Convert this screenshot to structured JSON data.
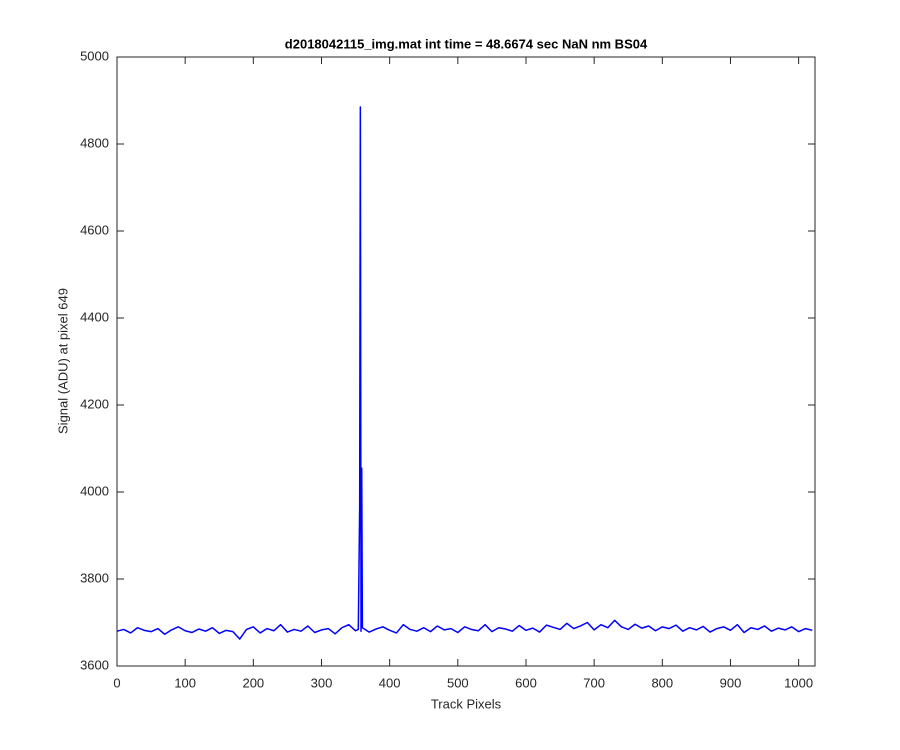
{
  "chart_data": {
    "type": "line",
    "title": "d2018042115_img.mat int time = 48.6674 sec  NaN nm BS04",
    "x_label": "Track Pixels",
    "y_label": "Signal (ADU) at pixel 649",
    "color": "#0000ff",
    "xlim": [
      0,
      1024
    ],
    "ylim": [
      3600,
      5000
    ],
    "xticks": [
      0,
      100,
      200,
      300,
      400,
      500,
      600,
      700,
      800,
      900,
      1000
    ],
    "yticks": [
      3600,
      3800,
      4000,
      4200,
      4400,
      4600,
      4800,
      5000
    ],
    "x": [
      0,
      10,
      20,
      30,
      40,
      50,
      60,
      70,
      80,
      90,
      100,
      110,
      120,
      130,
      140,
      150,
      160,
      170,
      180,
      190,
      200,
      210,
      220,
      230,
      240,
      250,
      260,
      270,
      280,
      290,
      300,
      310,
      320,
      330,
      340,
      350,
      354,
      356,
      357,
      358,
      359,
      360,
      370,
      380,
      390,
      400,
      410,
      420,
      430,
      440,
      450,
      460,
      470,
      480,
      490,
      500,
      510,
      520,
      530,
      540,
      550,
      560,
      570,
      580,
      590,
      600,
      610,
      620,
      630,
      640,
      650,
      660,
      670,
      680,
      690,
      700,
      710,
      720,
      730,
      740,
      750,
      760,
      770,
      780,
      790,
      800,
      810,
      820,
      830,
      840,
      850,
      860,
      870,
      880,
      890,
      900,
      910,
      920,
      930,
      940,
      950,
      960,
      970,
      980,
      990,
      1000,
      1010,
      1020
    ],
    "values": [
      3680,
      3684,
      3676,
      3688,
      3682,
      3679,
      3686,
      3673,
      3683,
      3690,
      3681,
      3677,
      3685,
      3680,
      3688,
      3675,
      3682,
      3679,
      3662,
      3684,
      3690,
      3676,
      3686,
      3681,
      3695,
      3678,
      3684,
      3680,
      3692,
      3677,
      3683,
      3686,
      3674,
      3688,
      3695,
      3681,
      3684,
      3965,
      4885,
      3680,
      4055,
      3688,
      3678,
      3685,
      3690,
      3682,
      3676,
      3695,
      3684,
      3680,
      3688,
      3679,
      3692,
      3683,
      3686,
      3677,
      3690,
      3684,
      3681,
      3695,
      3679,
      3688,
      3685,
      3680,
      3693,
      3682,
      3687,
      3678,
      3694,
      3689,
      3684,
      3698,
      3686,
      3692,
      3700,
      3683,
      3695,
      3688,
      3705,
      3690,
      3684,
      3696,
      3687,
      3692,
      3681,
      3690,
      3686,
      3694,
      3680,
      3688,
      3683,
      3691,
      3678,
      3686,
      3690,
      3682,
      3695,
      3677,
      3688,
      3684,
      3692,
      3680,
      3687,
      3683,
      3690,
      3679,
      3686,
      3682
    ]
  }
}
